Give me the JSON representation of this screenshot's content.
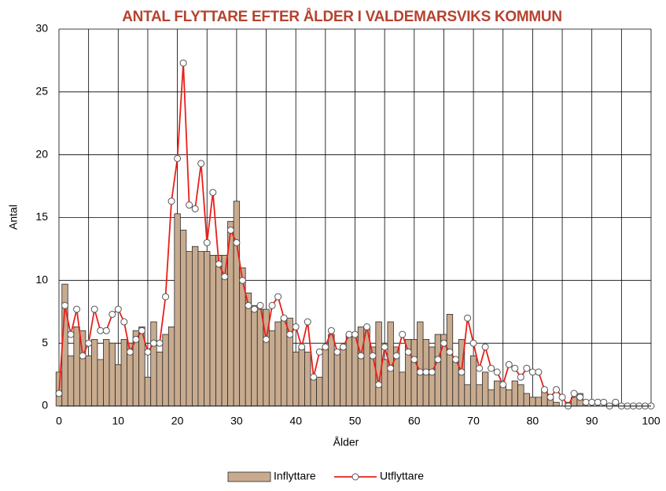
{
  "chart_data": {
    "type": "bar_line",
    "title": "ANTAL FLYTTARE EFTER ÅLDER I VALDEMARSVIKS KOMMUN",
    "xlabel": "Ålder",
    "ylabel": "Antal",
    "x": [
      0,
      1,
      2,
      3,
      4,
      5,
      6,
      7,
      8,
      9,
      10,
      11,
      12,
      13,
      14,
      15,
      16,
      17,
      18,
      19,
      20,
      21,
      22,
      23,
      24,
      25,
      26,
      27,
      28,
      29,
      30,
      31,
      32,
      33,
      34,
      35,
      36,
      37,
      38,
      39,
      40,
      41,
      42,
      43,
      44,
      45,
      46,
      47,
      48,
      49,
      50,
      51,
      52,
      53,
      54,
      55,
      56,
      57,
      58,
      59,
      60,
      61,
      62,
      63,
      64,
      65,
      66,
      67,
      68,
      69,
      70,
      71,
      72,
      73,
      74,
      75,
      76,
      77,
      78,
      79,
      80,
      81,
      82,
      83,
      84,
      85,
      86,
      87,
      88,
      89,
      90,
      91,
      92,
      93,
      94,
      95,
      96,
      97,
      98,
      99,
      100
    ],
    "series": [
      {
        "name": "Inflyttare",
        "type": "bar",
        "color": "#c8ab8f",
        "values": [
          2.7,
          9.7,
          4.0,
          6.3,
          6.0,
          4.0,
          5.3,
          3.7,
          5.3,
          5.0,
          3.3,
          5.3,
          5.0,
          6.0,
          6.3,
          2.3,
          6.7,
          4.3,
          5.7,
          6.3,
          15.3,
          14.0,
          12.3,
          12.7,
          12.3,
          12.3,
          12.0,
          12.0,
          12.0,
          14.7,
          16.3,
          11.0,
          9.0,
          8.0,
          7.7,
          7.7,
          6.0,
          6.7,
          7.0,
          7.0,
          4.3,
          4.7,
          4.3,
          2.3,
          2.3,
          4.7,
          5.7,
          4.3,
          4.7,
          5.7,
          5.7,
          6.3,
          6.3,
          4.7,
          6.7,
          3.7,
          6.7,
          4.7,
          2.7,
          5.3,
          5.3,
          6.7,
          5.3,
          4.7,
          5.7,
          5.7,
          7.3,
          3.7,
          5.3,
          1.7,
          4.0,
          1.7,
          2.7,
          1.3,
          2.0,
          1.7,
          1.3,
          2.0,
          1.7,
          1.0,
          0.7,
          0.7,
          1.3,
          0.7,
          0.3,
          0,
          0.3,
          0.7,
          1.0,
          0,
          0,
          0,
          0,
          0,
          0,
          0,
          0,
          0,
          0,
          0,
          0
        ]
      },
      {
        "name": "Utflyttare",
        "type": "line",
        "color": "#e8201a",
        "values": [
          1.0,
          8.0,
          5.7,
          7.7,
          4.0,
          5.0,
          7.7,
          6.0,
          6.0,
          7.3,
          7.7,
          6.7,
          4.3,
          5.3,
          6.0,
          4.3,
          5.0,
          5.0,
          8.7,
          16.3,
          19.7,
          27.3,
          16.0,
          15.7,
          19.3,
          13.0,
          17.0,
          11.3,
          10.3,
          14.0,
          13.0,
          10.0,
          8.0,
          7.7,
          8.0,
          5.3,
          8.0,
          8.7,
          7.0,
          5.7,
          6.3,
          4.7,
          6.7,
          2.3,
          4.3,
          4.7,
          6.0,
          4.3,
          4.7,
          5.7,
          5.7,
          4.0,
          6.3,
          4.0,
          1.7,
          4.7,
          3.0,
          4.0,
          5.7,
          4.3,
          3.7,
          2.7,
          2.7,
          2.7,
          3.7,
          5.0,
          4.3,
          3.7,
          2.7,
          7.0,
          5.0,
          3.0,
          4.7,
          3.0,
          2.7,
          1.7,
          3.3,
          3.0,
          2.3,
          3.0,
          2.7,
          2.7,
          1.3,
          0.7,
          1.3,
          0.7,
          0,
          1.0,
          0.7,
          0.3,
          0.3,
          0.3,
          0.3,
          0,
          0.3,
          0,
          0,
          0,
          0,
          0,
          0
        ]
      }
    ],
    "xlim": [
      0,
      100
    ],
    "xticks": [
      0,
      10,
      20,
      30,
      40,
      50,
      60,
      70,
      80,
      90,
      100
    ],
    "xgrid_ticks": [
      5,
      15,
      25,
      35,
      45,
      55,
      65,
      75,
      85,
      95
    ],
    "ylim": [
      0,
      30
    ],
    "yticks": [
      0,
      5,
      10,
      15,
      20,
      25,
      30
    ],
    "grid": true,
    "legend": "bottom"
  }
}
